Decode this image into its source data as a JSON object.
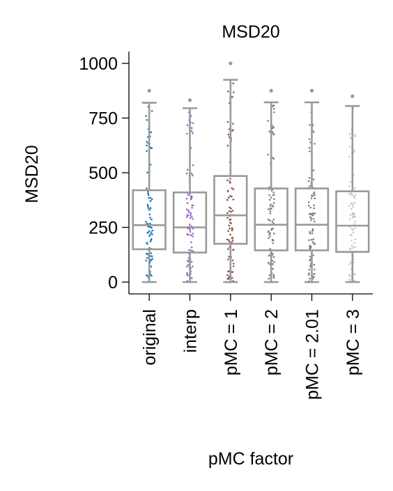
{
  "chart_data": {
    "type": "box",
    "title": "MSD20",
    "xlabel": "pMC factor",
    "ylabel": "MSD20",
    "ylim": [
      -55,
      1055
    ],
    "yticks": [
      0,
      250,
      500,
      750,
      1000
    ],
    "ytick_labels": [
      "0",
      "250",
      "500",
      "750",
      "1000"
    ],
    "grid": false,
    "categories": [
      "original",
      "interp",
      "pMC = 1",
      "pMC = 2",
      "pMC = 2.01",
      "pMC = 3"
    ],
    "point_colors": [
      "#1f77b4",
      "#9467bd",
      "#8c564b",
      "#7f7f7f",
      "#7f7f7f",
      "#c7c7c7"
    ],
    "box_color": "#999999",
    "boxes": [
      {
        "category": "original",
        "whislo": 0,
        "q1": 150,
        "med": 260,
        "q3": 420,
        "whishi": 820,
        "fliers": [
          875
        ]
      },
      {
        "category": "interp",
        "whislo": 0,
        "q1": 135,
        "med": 250,
        "q3": 410,
        "whishi": 795,
        "fliers": [
          832
        ]
      },
      {
        "category": "pMC = 1",
        "whislo": 0,
        "q1": 175,
        "med": 305,
        "q3": 485,
        "whishi": 925,
        "fliers": [
          1000
        ]
      },
      {
        "category": "pMC = 2",
        "whislo": 0,
        "q1": 145,
        "med": 262,
        "q3": 428,
        "whishi": 822,
        "fliers": [
          875
        ]
      },
      {
        "category": "pMC = 2.01",
        "whislo": 0,
        "q1": 145,
        "med": 262,
        "q3": 428,
        "whishi": 822,
        "fliers": [
          875
        ]
      },
      {
        "category": "pMC = 3",
        "whislo": 0,
        "q1": 138,
        "med": 258,
        "q3": 415,
        "whishi": 805,
        "fliers": [
          850
        ]
      }
    ]
  }
}
